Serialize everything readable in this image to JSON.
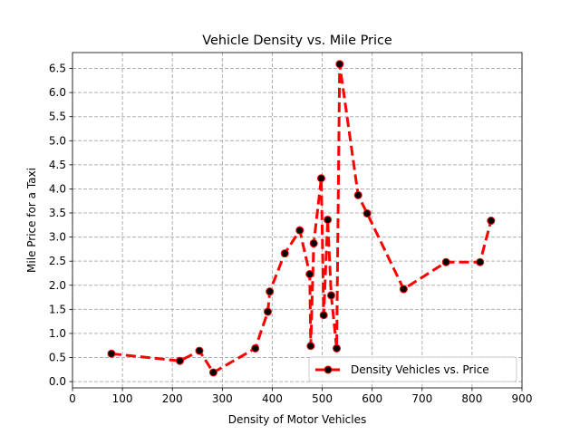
{
  "chart_data": {
    "type": "line",
    "title": "Vehicle Density vs. Mile Price",
    "xlabel": "Density of Motor Vehicles",
    "ylabel": "Mile Price for a Taxi",
    "xlim": [
      0,
      900
    ],
    "ylim": [
      -0.13,
      6.83
    ],
    "xticks": [
      0,
      100,
      200,
      300,
      400,
      500,
      600,
      700,
      800,
      900
    ],
    "yticks": [
      0.0,
      0.5,
      1.0,
      1.5,
      2.0,
      2.5,
      3.0,
      3.5,
      4.0,
      4.5,
      5.0,
      5.5,
      6.0,
      6.5
    ],
    "grid": true,
    "legend_position": "lower-right",
    "series": [
      {
        "name": "Density Vehicles vs. Price",
        "color": "#ff0000",
        "marker_color": "#000000",
        "line_style": "dashed",
        "x": [
          78,
          215,
          254,
          282,
          366,
          391,
          395,
          425,
          455,
          475,
          477,
          483,
          498,
          503,
          511,
          518,
          529,
          535,
          572,
          590,
          663,
          748,
          816,
          838
        ],
        "y": [
          0.58,
          0.43,
          0.64,
          0.19,
          0.69,
          1.45,
          1.87,
          2.66,
          3.14,
          2.23,
          0.74,
          2.87,
          4.22,
          1.38,
          3.36,
          1.79,
          0.69,
          6.59,
          3.87,
          3.49,
          1.92,
          2.48,
          2.48,
          3.34
        ]
      }
    ]
  }
}
